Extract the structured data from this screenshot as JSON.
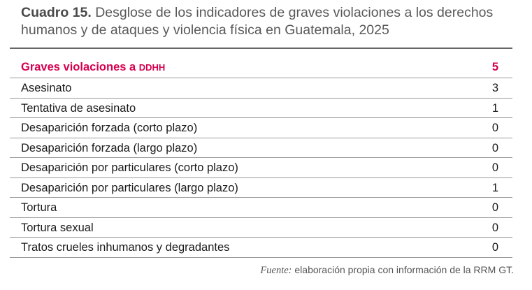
{
  "caption": {
    "label": "Cuadro 15.",
    "text": " Desglose de los indicadores de graves violaciones a los derechos humanos y de ataques y violencia física en Guatemala, 2025"
  },
  "table": {
    "header": {
      "label": "Graves violaciones a ",
      "label_suffix": "DDHH",
      "value": "5"
    },
    "rows": [
      {
        "label": "Asesinato",
        "value": "3"
      },
      {
        "label": "Tentativa de asesinato",
        "value": "1"
      },
      {
        "label": "Desaparición forzada (corto plazo)",
        "value": "0"
      },
      {
        "label": "Desaparición forzada (largo plazo)",
        "value": "0"
      },
      {
        "label": "Desaparición por particulares (corto plazo)",
        "value": "0"
      },
      {
        "label": "Desaparición por particulares (largo plazo)",
        "value": "1"
      },
      {
        "label": "Tortura",
        "value": "0"
      },
      {
        "label": "Tortura sexual",
        "value": "0"
      },
      {
        "label": "Tratos crueles inhumanos y degradantes",
        "value": "0"
      }
    ]
  },
  "source": {
    "label": "Fuente:",
    "text": " elaboración propia con información de la RRM GT."
  },
  "colors": {
    "accent": "#d6004f",
    "caption_text": "#595959"
  }
}
